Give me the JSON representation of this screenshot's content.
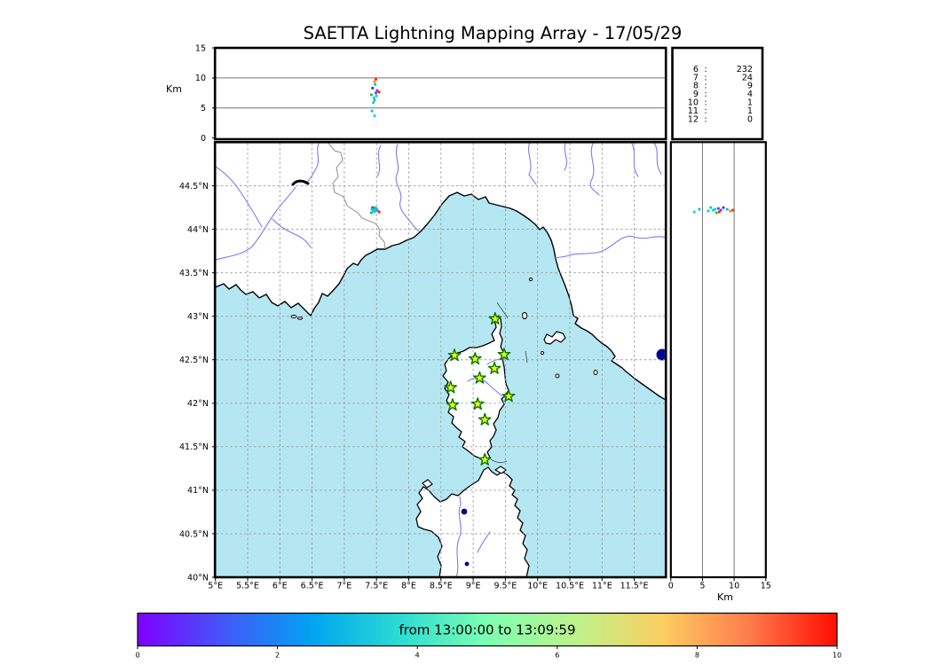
{
  "title": "SAETTA Lightning Mapping Array - 17/05/29",
  "alt_panel": {
    "ylabel": "Km",
    "yticks": [
      0,
      5,
      10,
      15
    ],
    "grid": [
      5,
      10
    ]
  },
  "right_panel": {
    "xlabel": "Km",
    "xticks": [
      0,
      5,
      10,
      15
    ],
    "grid": [
      5,
      10
    ]
  },
  "stats_panel": {
    "rows": [
      {
        "level": "6",
        "count": "232",
        "color": "#000000"
      },
      {
        "level": "7",
        "count": "24",
        "color": "#ff0000"
      },
      {
        "level": "8",
        "count": "9",
        "color": "#000000"
      },
      {
        "level": "9",
        "count": "4",
        "color": "#000000"
      },
      {
        "level": "10",
        "count": "1",
        "color": "#000000"
      },
      {
        "level": "11",
        "count": "1",
        "color": "#000000"
      },
      {
        "level": "12",
        "count": "0",
        "color": "#000000"
      }
    ]
  },
  "map": {
    "lon_ticks": [
      {
        "lon": 5.0,
        "label": "5°E"
      },
      {
        "lon": 5.5,
        "label": "5.5°E"
      },
      {
        "lon": 6.0,
        "label": "6°E"
      },
      {
        "lon": 6.5,
        "label": "6.5°E"
      },
      {
        "lon": 7.0,
        "label": "7°E"
      },
      {
        "lon": 7.5,
        "label": "7.5°E"
      },
      {
        "lon": 8.0,
        "label": "8°E"
      },
      {
        "lon": 8.5,
        "label": "8.5°E"
      },
      {
        "lon": 9.0,
        "label": "9°E"
      },
      {
        "lon": 9.5,
        "label": "9.5°E"
      },
      {
        "lon": 10.0,
        "label": "10°E"
      },
      {
        "lon": 10.5,
        "label": "10.5°E"
      },
      {
        "lon": 11.0,
        "label": "11°E"
      },
      {
        "lon": 11.5,
        "label": "11.5°E"
      }
    ],
    "lat_ticks": [
      {
        "lat": 44.5,
        "label": "44.5°N"
      },
      {
        "lat": 44.0,
        "label": "44°N"
      },
      {
        "lat": 43.5,
        "label": "43.5°N"
      },
      {
        "lat": 43.0,
        "label": "43°N"
      },
      {
        "lat": 42.5,
        "label": "42.5°N"
      },
      {
        "lat": 42.0,
        "label": "42°N"
      },
      {
        "lat": 41.5,
        "label": "41.5°N"
      },
      {
        "lat": 41.0,
        "label": "41°N"
      },
      {
        "lat": 40.5,
        "label": "40.5°N"
      },
      {
        "lat": 40.0,
        "label": "40°N"
      }
    ]
  },
  "colorbar": {
    "label": "from 13:00:00 to 13:09:59",
    "ticks": [
      "0",
      "2",
      "4",
      "6",
      "8",
      "10"
    ],
    "tick_values": [
      0,
      2,
      4,
      6,
      8,
      10
    ],
    "range": [
      0,
      10
    ],
    "stops": [
      [
        0,
        "#7f00ff"
      ],
      [
        0.125,
        "#4159fa"
      ],
      [
        0.25,
        "#00a4f0"
      ],
      [
        0.375,
        "#2cdcd2"
      ],
      [
        0.5,
        "#7dffb2"
      ],
      [
        0.625,
        "#bdf38c"
      ],
      [
        0.75,
        "#fbcf60"
      ],
      [
        0.875,
        "#ff7b4c"
      ],
      [
        1,
        "#ff0d00"
      ]
    ]
  },
  "chart_data": {
    "type": "scatter",
    "title": "SAETTA Lightning Mapping Array - 17/05/29",
    "time_window": {
      "start": "13:00:00",
      "end": "13:09:59",
      "colorbar_minutes": [
        0,
        10
      ]
    },
    "axes": {
      "lon_deg_e": [
        5,
        12
      ],
      "lat_deg_n": [
        40,
        45
      ],
      "alt_km": [
        0,
        15
      ]
    },
    "panels": [
      {
        "name": "altitude-vs-longitude",
        "xlim": [
          5,
          12
        ],
        "ylim": [
          0,
          15
        ],
        "ylabel": "Km",
        "gridlines_km": [
          5,
          10
        ]
      },
      {
        "name": "source-count-table",
        "rows": [
          [
            6,
            232
          ],
          [
            7,
            24
          ],
          [
            8,
            9
          ],
          [
            9,
            4
          ],
          [
            10,
            1
          ],
          [
            11,
            1
          ],
          [
            12,
            0
          ]
        ],
        "highlighted_row": 7
      },
      {
        "name": "map-lon-lat",
        "xlim": [
          5,
          12
        ],
        "ylim": [
          40,
          45
        ],
        "grid_step_deg": 0.5
      },
      {
        "name": "altitude-vs-latitude",
        "xlim": [
          0,
          15
        ],
        "ylim": [
          40,
          45
        ],
        "xlabel": "Km",
        "gridlines_km": [
          5,
          10
        ]
      }
    ],
    "source_counts_by_min_stations": {
      "6": 232,
      "7": 24,
      "8": 9,
      "9": 4,
      "10": 1,
      "11": 1,
      "12": 0
    },
    "stations_lon_lat": [
      [
        9.34,
        42.97
      ],
      [
        8.71,
        42.55
      ],
      [
        9.03,
        42.51
      ],
      [
        9.48,
        42.56
      ],
      [
        9.33,
        42.4
      ],
      [
        9.1,
        42.29
      ],
      [
        8.65,
        42.18
      ],
      [
        9.55,
        42.08
      ],
      [
        8.68,
        41.98
      ],
      [
        9.07,
        41.99
      ],
      [
        9.18,
        41.81
      ],
      [
        9.18,
        41.35
      ]
    ],
    "events": [
      {
        "lon": 7.49,
        "lat": 44.22,
        "alt_km": 9.8,
        "color": "#ee2200"
      },
      {
        "lon": 7.47,
        "lat": 44.21,
        "alt_km": 9.4,
        "color": "#ff8800"
      },
      {
        "lon": 7.48,
        "lat": 44.23,
        "alt_km": 8.9,
        "color": "#00bbee"
      },
      {
        "lon": 7.44,
        "lat": 44.25,
        "alt_km": 8.3,
        "color": "#2233ee"
      },
      {
        "lon": 7.51,
        "lat": 44.22,
        "alt_km": 7.9,
        "color": "#7733ee"
      },
      {
        "lon": 7.54,
        "lat": 44.2,
        "alt_km": 7.65,
        "color": "#ee2200"
      },
      {
        "lon": 7.49,
        "lat": 44.24,
        "alt_km": 7.5,
        "color": "#3355ee"
      },
      {
        "lon": 7.42,
        "lat": 44.19,
        "alt_km": 7.2,
        "color": "#22bb44"
      },
      {
        "lon": 7.5,
        "lat": 44.23,
        "alt_km": 7.0,
        "color": "#00ccee"
      },
      {
        "lon": 7.46,
        "lat": 44.22,
        "alt_km": 6.7,
        "color": "#00ccdd"
      },
      {
        "lon": 7.47,
        "lat": 44.25,
        "alt_km": 6.3,
        "color": "#33cc44"
      },
      {
        "lon": 7.45,
        "lat": 44.21,
        "alt_km": 5.9,
        "color": "#00ccee"
      },
      {
        "lon": 7.43,
        "lat": 44.23,
        "alt_km": 4.5,
        "color": "#00bbee"
      },
      {
        "lon": 7.47,
        "lat": 44.2,
        "alt_km": 3.7,
        "color": "#11ccee"
      }
    ]
  },
  "colors": {
    "sea": "#b5e7f3",
    "land": "#ffffff",
    "coast": "#000000",
    "river": "#7b7bf0",
    "border_line": "#8f8f8f",
    "grid": "#999999",
    "panel_grid": "#777777",
    "star_fill": "#ffff00",
    "star_edge": "#007700",
    "lake": "#000099",
    "highlight_red": "#ff0000"
  }
}
